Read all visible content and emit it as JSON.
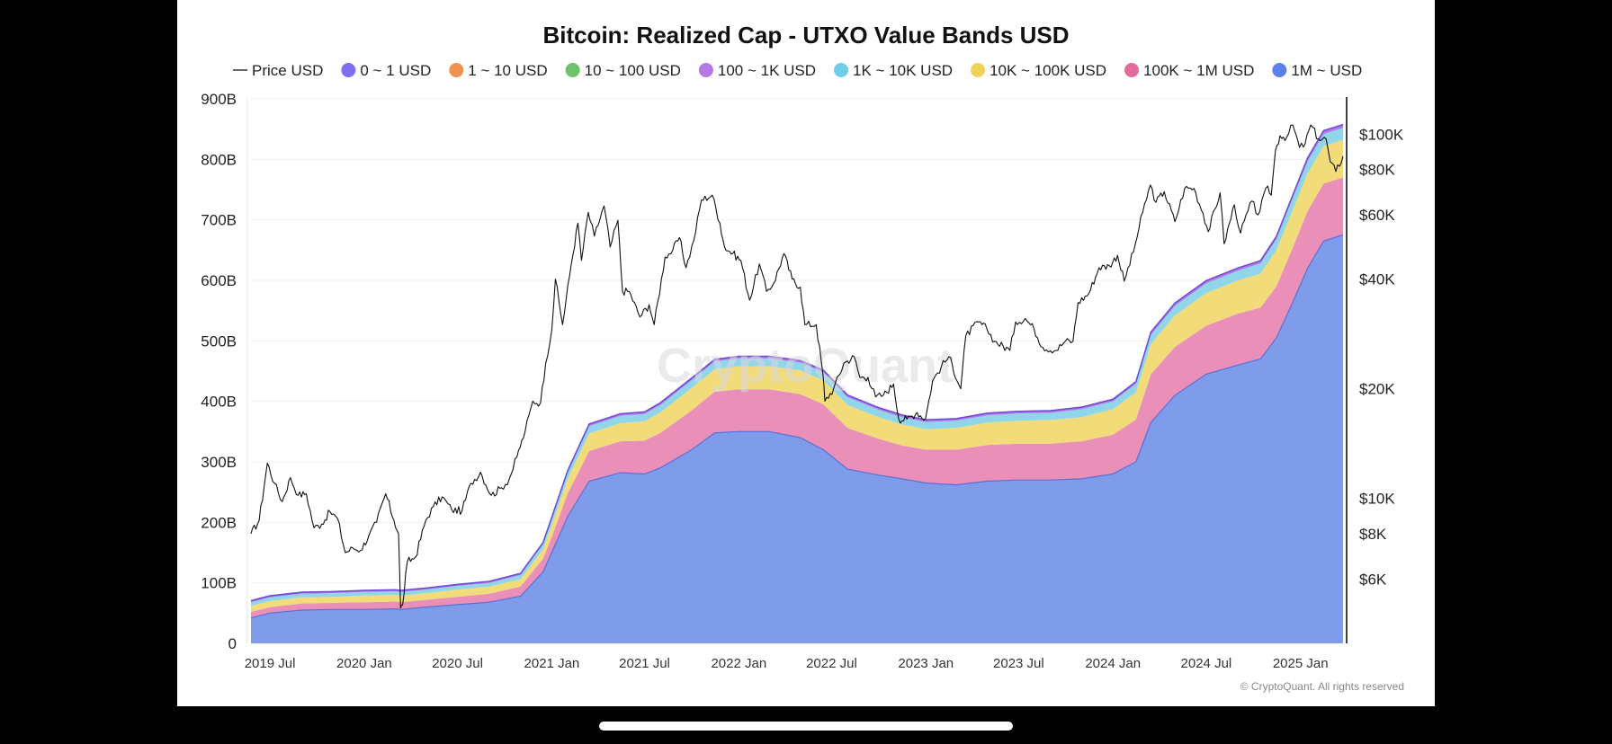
{
  "chart_data": {
    "type": "area",
    "title": "Bitcoin: Realized Cap - UTXO Value Bands USD",
    "watermark": "CryptoQuant",
    "copyright": "© CryptoQuant. All rights reserved",
    "stacked": true,
    "grid": true,
    "legend_position": "top",
    "y_left": {
      "ticks": [
        "0",
        "100B",
        "200B",
        "300B",
        "400B",
        "500B",
        "600B",
        "700B",
        "800B",
        "900B"
      ],
      "range": [
        0,
        900
      ]
    },
    "y_right": {
      "scale": "log",
      "ticks": [
        "$6K",
        "$8K",
        "$10K",
        "$20K",
        "$40K",
        "$60K",
        "$80K",
        "$100K"
      ],
      "tick_values": [
        6000,
        8000,
        10000,
        20000,
        40000,
        60000,
        80000,
        100000
      ],
      "range": [
        4000,
        125000
      ]
    },
    "x_ticks": [
      "2019 Jul",
      "2020 Jan",
      "2020 Jul",
      "2021 Jan",
      "2021 Jul",
      "2022 Jan",
      "2022 Jul",
      "2023 Jan",
      "2023 Jul",
      "2024 Jan",
      "2024 Jul",
      "2025 Jan"
    ],
    "x_tick_positions": [
      "2019-07-01",
      "2020-01-01",
      "2020-07-01",
      "2021-01-01",
      "2021-07-01",
      "2022-01-01",
      "2022-07-01",
      "2023-01-01",
      "2023-07-01",
      "2024-01-01",
      "2024-07-01",
      "2025-01-01"
    ],
    "x_range": [
      "2019-05-25",
      "2025-03-25"
    ],
    "dates": [
      "2019-05-25",
      "2019-07-01",
      "2019-09-01",
      "2019-11-01",
      "2020-01-01",
      "2020-03-01",
      "2020-03-13",
      "2020-05-01",
      "2020-07-01",
      "2020-09-01",
      "2020-11-01",
      "2020-12-15",
      "2021-01-01",
      "2021-02-01",
      "2021-03-15",
      "2021-05-15",
      "2021-07-01",
      "2021-08-01",
      "2021-10-01",
      "2021-11-15",
      "2022-01-01",
      "2022-03-01",
      "2022-05-01",
      "2022-06-15",
      "2022-08-01",
      "2022-10-01",
      "2022-11-15",
      "2023-01-01",
      "2023-03-01",
      "2023-05-01",
      "2023-07-01",
      "2023-09-01",
      "2023-11-01",
      "2024-01-01",
      "2024-02-15",
      "2024-03-15",
      "2024-05-01",
      "2024-07-01",
      "2024-09-01",
      "2024-10-15",
      "2024-11-15",
      "2024-12-15",
      "2025-01-15",
      "2025-02-15",
      "2025-03-25"
    ],
    "series": [
      {
        "name": "1M ~ USD",
        "color": "#7f9ceb",
        "values": [
          42,
          50,
          55,
          56,
          56,
          57,
          56,
          60,
          64,
          68,
          78,
          118,
          150,
          210,
          268,
          282,
          280,
          290,
          320,
          348,
          350,
          350,
          340,
          320,
          288,
          278,
          272,
          265,
          262,
          268,
          270,
          270,
          272,
          280,
          300,
          365,
          410,
          445,
          460,
          470,
          505,
          560,
          620,
          665,
          675
        ]
      },
      {
        "name": "100K ~ 1M USD",
        "color": "#e98fb8",
        "values": [
          10,
          10,
          11,
          11,
          12,
          12,
          12,
          12,
          13,
          14,
          16,
          22,
          26,
          38,
          50,
          52,
          55,
          58,
          65,
          68,
          70,
          70,
          72,
          75,
          68,
          60,
          55,
          55,
          58,
          60,
          60,
          60,
          62,
          65,
          70,
          80,
          80,
          80,
          85,
          85,
          85,
          90,
          95,
          95,
          95
        ]
      },
      {
        "name": "10K ~ 100K USD",
        "color": "#f2dc7a",
        "values": [
          10,
          10,
          10,
          10,
          11,
          11,
          11,
          11,
          12,
          12,
          12,
          16,
          20,
          24,
          29,
          30,
          32,
          34,
          37,
          37,
          38,
          38,
          39,
          40,
          38,
          36,
          35,
          34,
          36,
          37,
          38,
          39,
          40,
          42,
          45,
          50,
          52,
          54,
          55,
          56,
          60,
          62,
          62,
          62,
          62
        ]
      },
      {
        "name": "1K ~ 10K USD",
        "color": "#8fd6ea",
        "values": [
          6,
          6,
          6,
          6,
          6,
          6,
          6,
          6,
          6,
          6,
          7,
          8,
          9,
          10,
          12,
          12,
          12,
          12,
          13,
          13,
          13,
          13,
          13,
          13,
          13,
          12,
          12,
          12,
          12,
          12,
          12,
          12,
          13,
          13,
          14,
          15,
          16,
          16,
          16,
          17,
          18,
          20,
          20,
          20,
          20
        ]
      },
      {
        "name": "100 ~ 1K USD",
        "color": "#b678e4",
        "values": [
          2,
          2,
          2,
          2,
          2,
          2,
          2,
          2,
          2,
          2,
          2,
          2,
          3,
          3,
          3,
          3,
          3,
          3,
          3,
          3,
          3,
          3,
          3,
          3,
          3,
          3,
          3,
          3,
          3,
          3,
          3,
          3,
          3,
          3,
          3,
          4,
          4,
          4,
          4,
          4,
          4,
          4,
          5,
          5,
          5
        ]
      },
      {
        "name": "10 ~ 100 USD",
        "color": "#6cc36b",
        "values": [
          0.3,
          0.3,
          0.3,
          0.3,
          0.3,
          0.3,
          0.3,
          0.3,
          0.3,
          0.3,
          0.3,
          0.3,
          0.3,
          0.3,
          0.3,
          0.3,
          0.3,
          0.3,
          0.3,
          0.3,
          0.3,
          0.3,
          0.3,
          0.3,
          0.3,
          0.3,
          0.3,
          0.3,
          0.3,
          0.3,
          0.3,
          0.3,
          0.3,
          0.3,
          0.3,
          0.3,
          0.3,
          0.3,
          0.3,
          0.3,
          0.3,
          0.3,
          0.3,
          0.3,
          0.3
        ]
      },
      {
        "name": "1 ~ 10 USD",
        "color": "#f0924f",
        "values": [
          0.1,
          0.1,
          0.1,
          0.1,
          0.1,
          0.1,
          0.1,
          0.1,
          0.1,
          0.1,
          0.1,
          0.1,
          0.1,
          0.1,
          0.1,
          0.1,
          0.1,
          0.1,
          0.1,
          0.1,
          0.1,
          0.1,
          0.1,
          0.1,
          0.1,
          0.1,
          0.1,
          0.1,
          0.1,
          0.1,
          0.1,
          0.1,
          0.1,
          0.1,
          0.1,
          0.1,
          0.1,
          0.1,
          0.1,
          0.1,
          0.1,
          0.1,
          0.1,
          0.1,
          0.1
        ]
      },
      {
        "name": "0 ~ 1 USD",
        "color": "#7d6ff0",
        "values": [
          0.1,
          0.1,
          0.1,
          0.1,
          0.1,
          0.1,
          0.1,
          0.1,
          0.1,
          0.1,
          0.1,
          0.1,
          0.1,
          0.1,
          0.1,
          0.1,
          0.1,
          0.1,
          0.1,
          0.1,
          0.1,
          0.1,
          0.1,
          0.1,
          0.1,
          0.1,
          0.1,
          0.1,
          0.1,
          0.1,
          0.1,
          0.1,
          0.1,
          0.1,
          0.1,
          0.1,
          0.1,
          0.1,
          0.1,
          0.1,
          0.1,
          0.1,
          0.1,
          0.1,
          0.1
        ]
      }
    ],
    "legend_order": [
      "Price USD",
      "0 ~ 1 USD",
      "1 ~ 10 USD",
      "10 ~ 100 USD",
      "100 ~ 1K USD",
      "1K ~ 10K USD",
      "10K ~ 100K USD",
      "100K ~ 1M USD",
      "1M ~ USD"
    ],
    "legend_marker_colors": {
      "0 ~ 1 USD": "#7d6ff0",
      "1 ~ 10 USD": "#f0924f",
      "10 ~ 100 USD": "#6cc36b",
      "100 ~ 1K USD": "#b678e4",
      "1K ~ 10K USD": "#6ccfe6",
      "10K ~ 100K USD": "#f0d25a",
      "100K ~ 1M USD": "#e5699f",
      "1M ~ USD": "#5a82ea"
    },
    "price": {
      "name": "Price USD",
      "color": "#111111",
      "axis": "right",
      "points": [
        [
          "2019-05-25",
          8000
        ],
        [
          "2019-06-10",
          8700
        ],
        [
          "2019-06-26",
          12500
        ],
        [
          "2019-07-10",
          11000
        ],
        [
          "2019-07-25",
          9800
        ],
        [
          "2019-08-10",
          11400
        ],
        [
          "2019-08-25",
          10200
        ],
        [
          "2019-09-10",
          10300
        ],
        [
          "2019-09-25",
          8300
        ],
        [
          "2019-10-10",
          8500
        ],
        [
          "2019-10-26",
          9200
        ],
        [
          "2019-11-10",
          8800
        ],
        [
          "2019-11-25",
          7100
        ],
        [
          "2019-12-10",
          7300
        ],
        [
          "2019-12-25",
          7200
        ],
        [
          "2020-01-10",
          7900
        ],
        [
          "2020-01-25",
          8600
        ],
        [
          "2020-02-12",
          10300
        ],
        [
          "2020-02-28",
          8700
        ],
        [
          "2020-03-08",
          8000
        ],
        [
          "2020-03-12",
          5000
        ],
        [
          "2020-03-16",
          5100
        ],
        [
          "2020-03-25",
          6700
        ],
        [
          "2020-04-10",
          6900
        ],
        [
          "2020-04-30",
          8700
        ],
        [
          "2020-05-15",
          9500
        ],
        [
          "2020-06-01",
          10100
        ],
        [
          "2020-06-20",
          9300
        ],
        [
          "2020-07-10",
          9250
        ],
        [
          "2020-07-27",
          11000
        ],
        [
          "2020-08-15",
          11800
        ],
        [
          "2020-09-05",
          10200
        ],
        [
          "2020-09-25",
          10700
        ],
        [
          "2020-10-10",
          11300
        ],
        [
          "2020-10-25",
          13000
        ],
        [
          "2020-11-10",
          15300
        ],
        [
          "2020-11-25",
          18500
        ],
        [
          "2020-12-10",
          18300
        ],
        [
          "2020-12-20",
          23500
        ],
        [
          "2021-01-01",
          29000
        ],
        [
          "2021-01-08",
          40000
        ],
        [
          "2021-01-22",
          30000
        ],
        [
          "2021-02-08",
          44000
        ],
        [
          "2021-02-21",
          57000
        ],
        [
          "2021-02-28",
          45000
        ],
        [
          "2021-03-13",
          61000
        ],
        [
          "2021-03-25",
          52500
        ],
        [
          "2021-04-13",
          63500
        ],
        [
          "2021-04-25",
          49000
        ],
        [
          "2021-05-10",
          58000
        ],
        [
          "2021-05-19",
          37000
        ],
        [
          "2021-06-01",
          37000
        ],
        [
          "2021-06-22",
          31500
        ],
        [
          "2021-07-10",
          34000
        ],
        [
          "2021-07-20",
          30000
        ],
        [
          "2021-08-10",
          46000
        ],
        [
          "2021-08-25",
          48000
        ],
        [
          "2021-09-07",
          52000
        ],
        [
          "2021-09-20",
          43000
        ],
        [
          "2021-10-05",
          51000
        ],
        [
          "2021-10-20",
          66000
        ],
        [
          "2021-11-10",
          68000
        ],
        [
          "2021-11-25",
          57000
        ],
        [
          "2021-12-04",
          49000
        ],
        [
          "2021-12-20",
          47000
        ],
        [
          "2022-01-05",
          45000
        ],
        [
          "2022-01-22",
          35000
        ],
        [
          "2022-02-10",
          44000
        ],
        [
          "2022-02-24",
          37000
        ],
        [
          "2022-03-10",
          39000
        ],
        [
          "2022-03-30",
          47000
        ],
        [
          "2022-04-15",
          40000
        ],
        [
          "2022-05-01",
          38000
        ],
        [
          "2022-05-10",
          30000
        ],
        [
          "2022-06-01",
          30000
        ],
        [
          "2022-06-14",
          22000
        ],
        [
          "2022-06-18",
          18500
        ],
        [
          "2022-07-05",
          20000
        ],
        [
          "2022-07-25",
          23500
        ],
        [
          "2022-08-14",
          24500
        ],
        [
          "2022-08-25",
          21500
        ],
        [
          "2022-09-10",
          21500
        ],
        [
          "2022-09-25",
          19000
        ],
        [
          "2022-10-10",
          19200
        ],
        [
          "2022-10-30",
          20600
        ],
        [
          "2022-11-09",
          16500
        ],
        [
          "2022-11-25",
          16500
        ],
        [
          "2022-12-15",
          17200
        ],
        [
          "2022-12-31",
          16500
        ],
        [
          "2023-01-14",
          21000
        ],
        [
          "2023-01-31",
          23000
        ],
        [
          "2023-02-15",
          24500
        ],
        [
          "2023-03-10",
          20000
        ],
        [
          "2023-03-20",
          28000
        ],
        [
          "2023-04-14",
          30500
        ],
        [
          "2023-04-30",
          29200
        ],
        [
          "2023-05-15",
          27000
        ],
        [
          "2023-06-14",
          25500
        ],
        [
          "2023-06-25",
          30500
        ],
        [
          "2023-07-14",
          31200
        ],
        [
          "2023-07-31",
          29200
        ],
        [
          "2023-08-17",
          26000
        ],
        [
          "2023-09-12",
          25500
        ],
        [
          "2023-09-30",
          27000
        ],
        [
          "2023-10-15",
          27000
        ],
        [
          "2023-10-25",
          34500
        ],
        [
          "2023-11-15",
          36500
        ],
        [
          "2023-12-05",
          43000
        ],
        [
          "2023-12-25",
          43500
        ],
        [
          "2024-01-10",
          46500
        ],
        [
          "2024-01-23",
          39500
        ],
        [
          "2024-02-10",
          47500
        ],
        [
          "2024-02-28",
          61000
        ],
        [
          "2024-03-14",
          72500
        ],
        [
          "2024-03-25",
          65000
        ],
        [
          "2024-04-10",
          69500
        ],
        [
          "2024-05-01",
          57500
        ],
        [
          "2024-05-20",
          71000
        ],
        [
          "2024-06-07",
          71000
        ],
        [
          "2024-06-25",
          60500
        ],
        [
          "2024-07-05",
          54000
        ],
        [
          "2024-07-28",
          69000
        ],
        [
          "2024-08-05",
          50000
        ],
        [
          "2024-08-25",
          64000
        ],
        [
          "2024-09-06",
          53500
        ],
        [
          "2024-09-28",
          65500
        ],
        [
          "2024-10-10",
          60000
        ],
        [
          "2024-10-29",
          72000
        ],
        [
          "2024-11-05",
          68000
        ],
        [
          "2024-11-13",
          90000
        ],
        [
          "2024-11-22",
          99000
        ],
        [
          "2024-12-05",
          98000
        ],
        [
          "2024-12-17",
          106000
        ],
        [
          "2024-12-30",
          92000
        ],
        [
          "2025-01-10",
          94000
        ],
        [
          "2025-01-21",
          106000
        ],
        [
          "2025-02-05",
          97000
        ],
        [
          "2025-02-20",
          97000
        ],
        [
          "2025-02-28",
          84000
        ],
        [
          "2025-03-11",
          79000
        ],
        [
          "2025-03-25",
          87000
        ]
      ]
    }
  }
}
